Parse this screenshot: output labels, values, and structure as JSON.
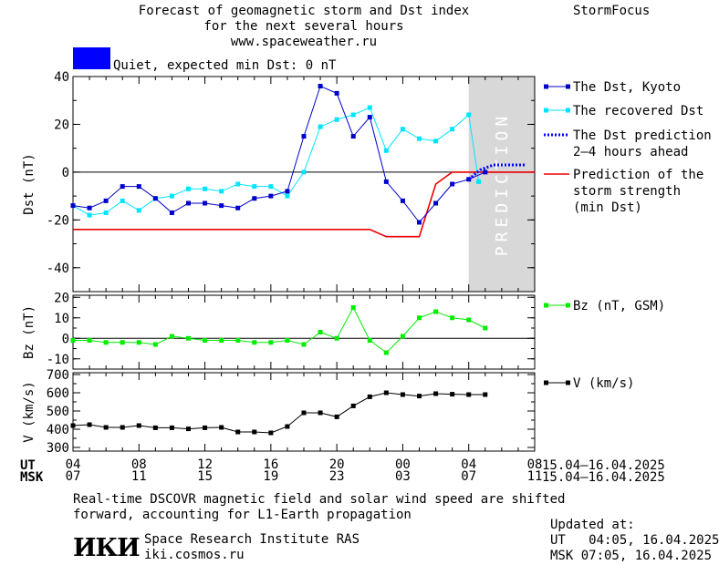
{
  "header": {
    "title_line1": "Forecast of geomagnetic storm and Dst index",
    "title_line2": "for the next several hours",
    "url": "www.spaceweather.ru",
    "brand": "StormFocus",
    "status_text": "Quiet, expected min Dst: 0 nT",
    "status_color": "#0000ff"
  },
  "colors": {
    "dst": "#0000cc",
    "recovered": "#00e5ff",
    "prediction": "#0000ff",
    "storm": "#ee0000",
    "bz": "#00ee00",
    "v": "#000000",
    "shade": "#d8d8d8"
  },
  "chart_data": [
    {
      "type": "line",
      "ylabel": "Dst (nT)",
      "ylim": [
        -50,
        40
      ],
      "yticks": [
        40,
        20,
        0,
        -20,
        -40
      ],
      "shaded_label": "PREDICTION",
      "series": [
        {
          "name": "The Dst, Kyoto",
          "x": [
            4,
            5,
            6,
            7,
            8,
            9,
            10,
            11,
            12,
            13,
            14,
            15,
            16,
            17,
            18,
            19,
            20,
            21,
            22,
            23,
            24,
            25,
            26,
            27,
            28,
            29
          ],
          "y": [
            -14,
            -15,
            -12,
            -6,
            -6,
            -11,
            -17,
            -13,
            -13,
            -14,
            -15,
            -11,
            -10,
            -8,
            15,
            36,
            33,
            15,
            23,
            -4,
            -12,
            -21,
            -13,
            -5,
            -3,
            0
          ]
        },
        {
          "name": "The recovered Dst",
          "x": [
            4,
            5,
            6,
            7,
            8,
            9,
            10,
            11,
            12,
            13,
            14,
            15,
            16,
            17,
            18,
            19,
            20,
            21,
            22,
            23,
            24,
            25,
            26,
            27,
            28,
            28.6
          ],
          "y": [
            -14,
            -18,
            -17,
            -12,
            -16,
            -11,
            -10,
            -7,
            -7,
            -8,
            -5,
            -6,
            -6,
            -10,
            0,
            19,
            22,
            24,
            27,
            9,
            18,
            14,
            13,
            18,
            24,
            -4
          ]
        },
        {
          "name": "The Dst prediction\n2–4 hours ahead",
          "x": [
            28,
            28.7,
            29.5,
            30.5,
            31.5
          ],
          "y": [
            -3,
            1,
            3,
            3,
            3
          ]
        },
        {
          "name": "Prediction of the\nstorm strength\n(min Dst)",
          "x": [
            4,
            22,
            23,
            25,
            26,
            27,
            28,
            32
          ],
          "y": [
            -24,
            -24,
            -27,
            -27,
            -5,
            0,
            0,
            0
          ]
        }
      ]
    },
    {
      "type": "line",
      "ylabel": "Bz (nT)",
      "ylim": [
        -15,
        21
      ],
      "yticks": [
        20,
        10,
        0,
        -10
      ],
      "series": [
        {
          "name": "Bz (nT, GSM)",
          "x": [
            4,
            5,
            6,
            7,
            8,
            9,
            10,
            11,
            12,
            13,
            14,
            15,
            16,
            17,
            18,
            19,
            20,
            21,
            22,
            23,
            24,
            25,
            26,
            27,
            28,
            29
          ],
          "y": [
            -1,
            -1,
            -2,
            -2,
            -2,
            -3,
            1,
            0,
            -1,
            -1,
            -1,
            -2,
            -2,
            -1,
            -3,
            3,
            0,
            15,
            -1,
            -7,
            1,
            10,
            13,
            10,
            9,
            5
          ]
        }
      ]
    },
    {
      "type": "line",
      "ylabel": "V (km/s)",
      "ylim": [
        280,
        710
      ],
      "yticks": [
        700,
        600,
        500,
        400,
        300
      ],
      "series": [
        {
          "name": "V (km/s)",
          "x": [
            4,
            5,
            6,
            7,
            8,
            9,
            10,
            11,
            12,
            13,
            14,
            15,
            16,
            17,
            18,
            19,
            20,
            21,
            22,
            23,
            24,
            25,
            26,
            27,
            28,
            29
          ],
          "y": [
            420,
            425,
            410,
            410,
            420,
            408,
            408,
            402,
            408,
            410,
            385,
            385,
            380,
            415,
            490,
            490,
            468,
            528,
            578,
            600,
            590,
            582,
            595,
            592,
            590,
            590
          ]
        }
      ]
    }
  ],
  "x_axis": {
    "ut_label": "UT",
    "msk_label": "MSK",
    "ut_ticks": [
      "04",
      "08",
      "12",
      "16",
      "20",
      "00",
      "04",
      "08"
    ],
    "msk_ticks": [
      "07",
      "11",
      "15",
      "19",
      "23",
      "03",
      "07",
      "11"
    ],
    "ut_range": "15.04–16.04.2025",
    "msk_range": "15.04–16.04.2025"
  },
  "footer": {
    "note_line1": "Real-time DSCOVR magnetic field and solar wind speed are shifted",
    "note_line2": "forward, accounting for L1-Earth propagation",
    "logo_text": "ИКИ",
    "institute": "Space Research Institute RAS",
    "site": "iki.cosmos.ru",
    "updated_label": "Updated at:",
    "updated_ut": "UT   04:05, 16.04.2025",
    "updated_msk": "MSK 07:05, 16.04.2025"
  }
}
